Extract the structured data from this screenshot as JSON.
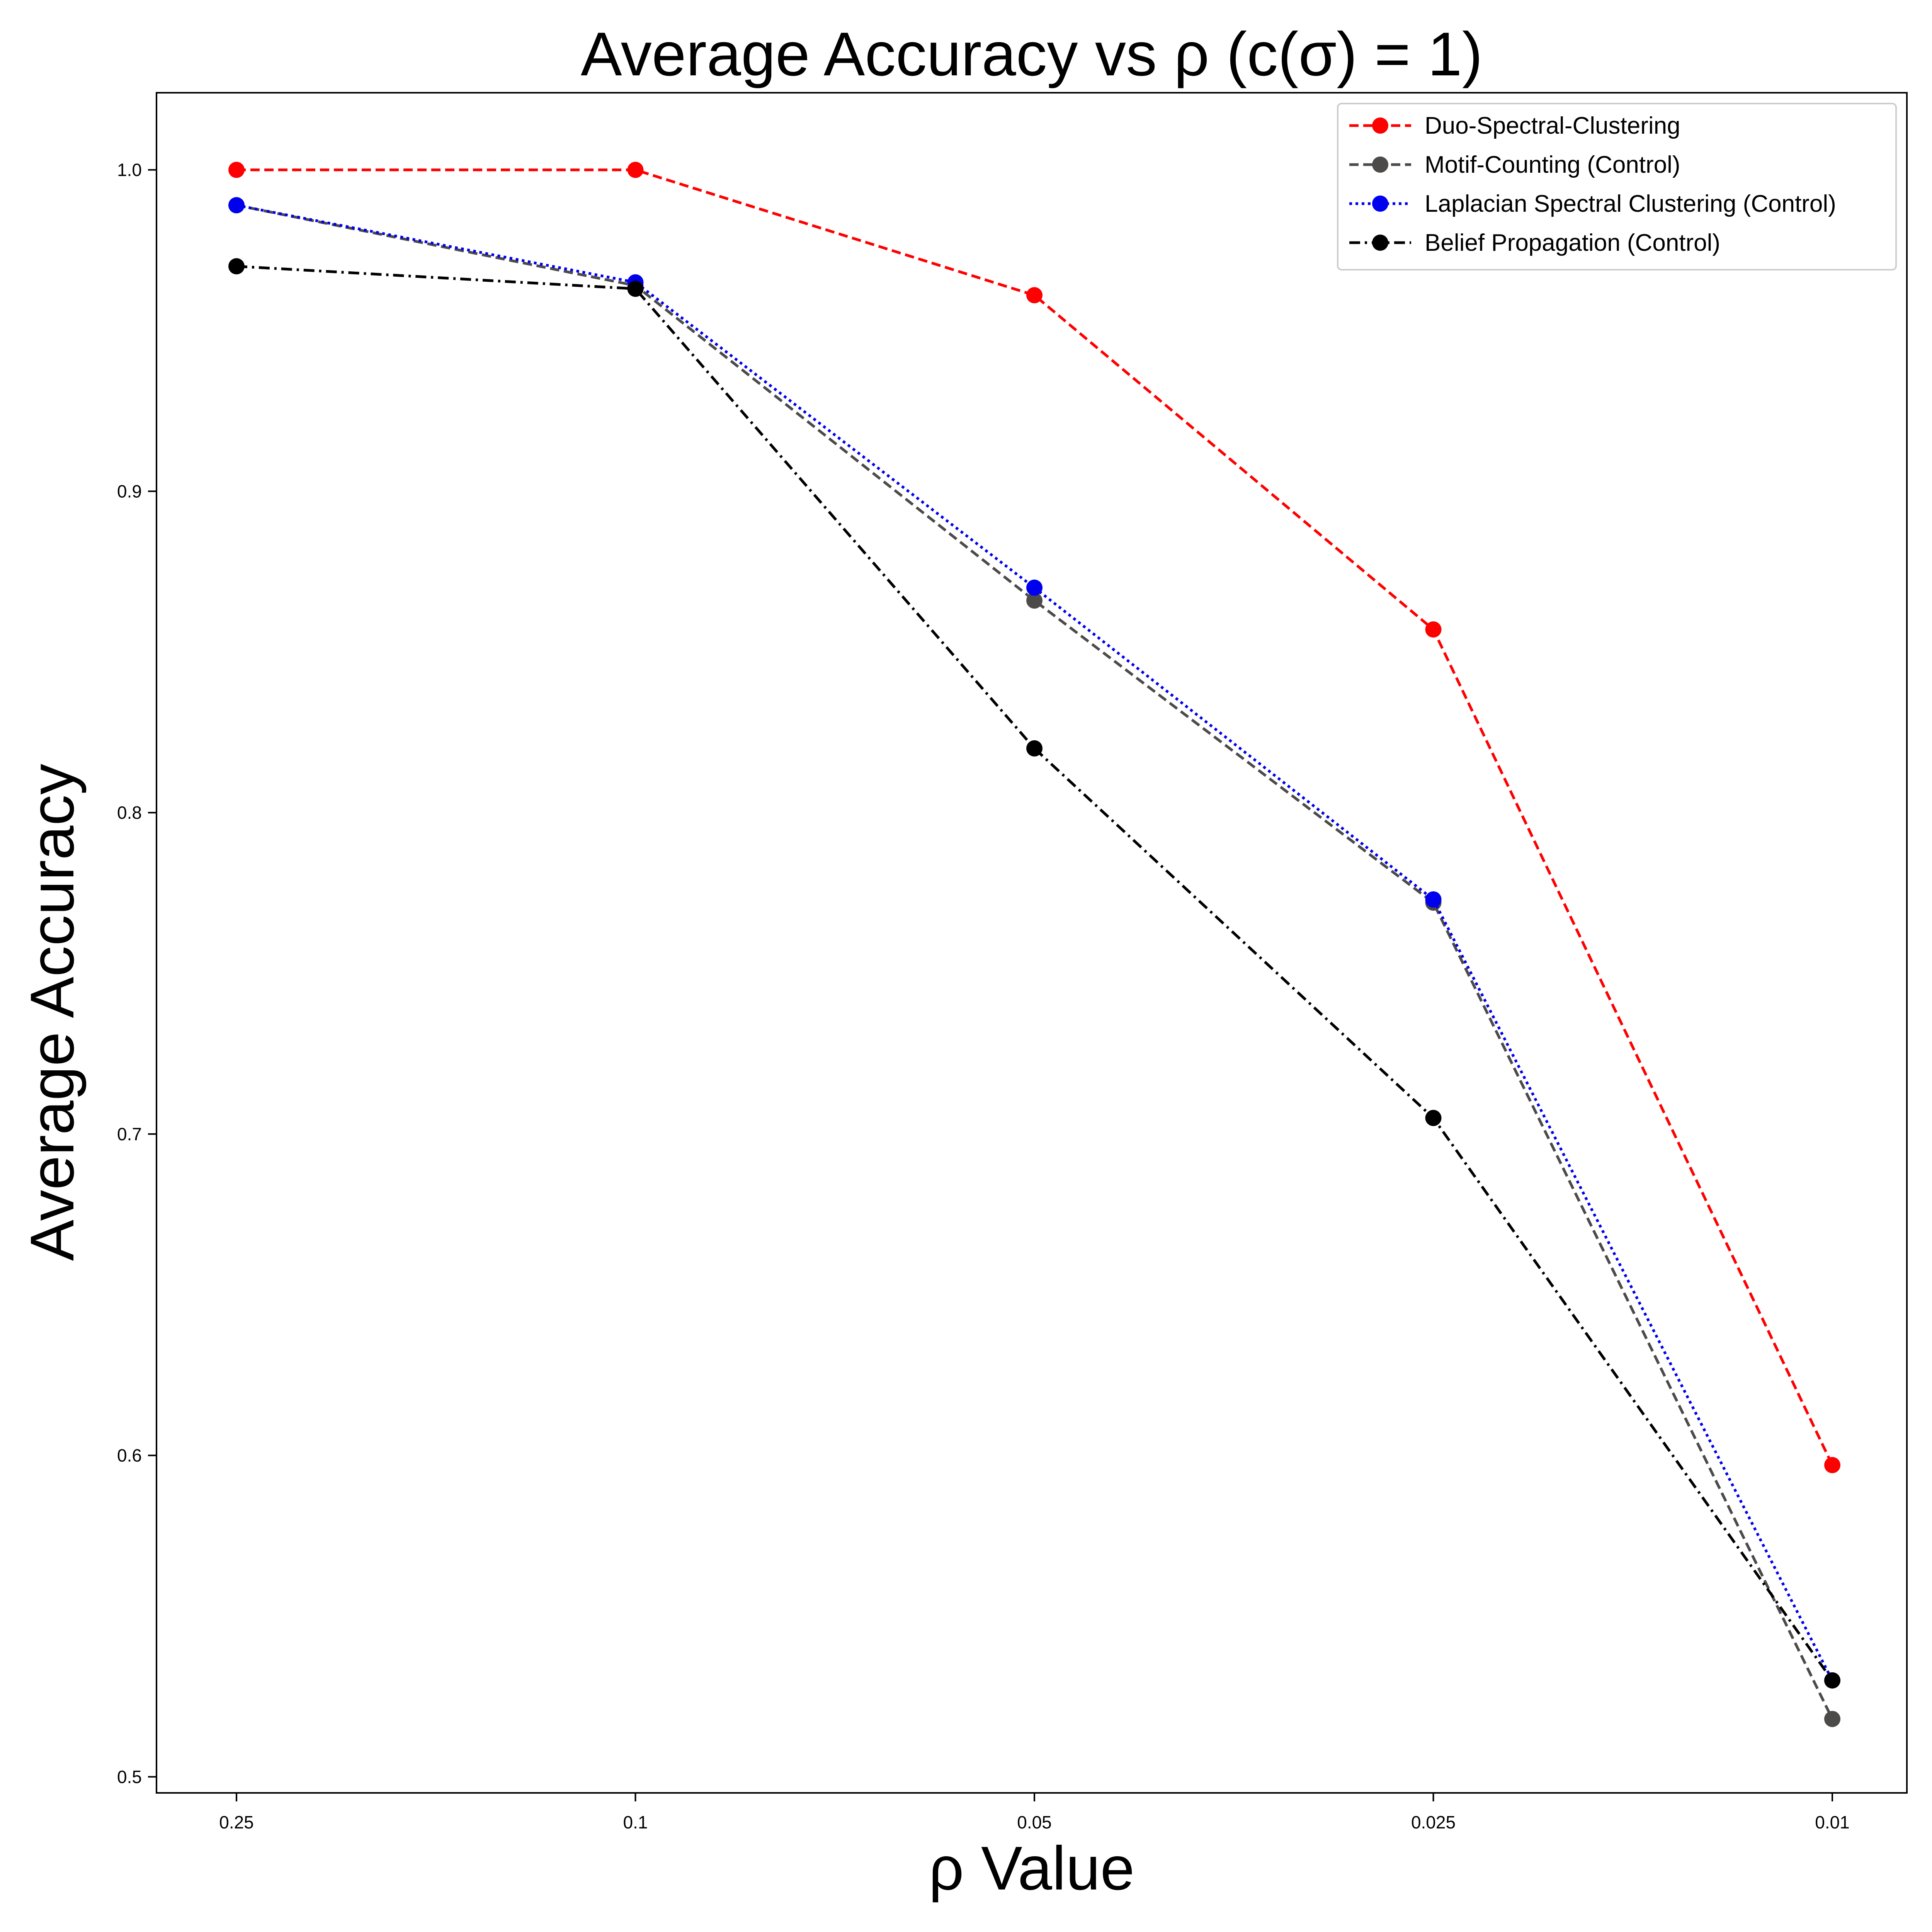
{
  "chart_data": {
    "type": "line",
    "title": "Average Accuracy vs ρ (c(σ) = 1)",
    "xlabel": "ρ Value",
    "ylabel": "Average Accuracy",
    "categories": [
      "0.25",
      "0.1",
      "0.05",
      "0.025",
      "0.01"
    ],
    "ylim": [
      0.495,
      1.024
    ],
    "yticks": [
      0.5,
      0.6,
      0.7,
      0.8,
      0.9,
      1.0
    ],
    "ytick_labels": [
      "0.5",
      "0.6",
      "0.7",
      "0.8",
      "0.9",
      "1.0"
    ],
    "grid": false,
    "legend_position": "top-right",
    "series": [
      {
        "name": "Duo-Spectral-Clustering",
        "values": [
          1.0,
          1.0,
          0.961,
          0.857,
          0.597
        ],
        "color": "#ff0000",
        "linestyle": "dashed",
        "marker": "circle"
      },
      {
        "name": "Motif-Counting (Control)",
        "values": [
          0.989,
          0.964,
          0.866,
          0.772,
          0.518
        ],
        "color": "#4d4a4a",
        "linestyle": "dashed",
        "marker": "circle"
      },
      {
        "name": "Laplacian Spectral Clustering (Control)",
        "values": [
          0.989,
          0.965,
          0.87,
          0.773,
          0.53
        ],
        "color": "#0000ee",
        "linestyle": "dotted",
        "marker": "circle"
      },
      {
        "name": "Belief Propagation (Control)",
        "values": [
          0.97,
          0.963,
          0.82,
          0.705,
          0.53
        ],
        "color": "#000000",
        "linestyle": "dashdot",
        "marker": "circle"
      }
    ]
  }
}
